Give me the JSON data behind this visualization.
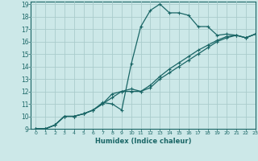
{
  "title": "",
  "xlabel": "Humidex (Indice chaleur)",
  "xlim": [
    -0.5,
    23
  ],
  "ylim": [
    9,
    19.2
  ],
  "xticks": [
    0,
    1,
    2,
    3,
    4,
    5,
    6,
    7,
    8,
    9,
    10,
    11,
    12,
    13,
    14,
    15,
    16,
    17,
    18,
    19,
    20,
    21,
    22,
    23
  ],
  "yticks": [
    9,
    10,
    11,
    12,
    13,
    14,
    15,
    16,
    17,
    18,
    19
  ],
  "background_color": "#cce8e8",
  "grid_color": "#aacccc",
  "line_color": "#1a6666",
  "line1_x": [
    0,
    1,
    2,
    3,
    4,
    5,
    6,
    7,
    8,
    9,
    10,
    11,
    12,
    13,
    14,
    15,
    16,
    17,
    18,
    19,
    20,
    21,
    22,
    23
  ],
  "line1_y": [
    9.0,
    9.0,
    9.3,
    10.0,
    10.0,
    10.2,
    10.5,
    11.1,
    11.0,
    10.5,
    14.2,
    17.2,
    18.5,
    19.0,
    18.3,
    18.3,
    18.1,
    17.2,
    17.2,
    16.5,
    16.6,
    16.5,
    16.3,
    16.6
  ],
  "line2_x": [
    0,
    1,
    2,
    3,
    4,
    5,
    6,
    7,
    8,
    9,
    10,
    11,
    12,
    13,
    14,
    15,
    16,
    17,
    18,
    19,
    20,
    21,
    22,
    23
  ],
  "line2_y": [
    9.0,
    9.0,
    9.3,
    10.0,
    10.0,
    10.2,
    10.5,
    11.0,
    11.8,
    12.0,
    12.2,
    12.0,
    12.3,
    13.0,
    13.5,
    14.0,
    14.5,
    15.0,
    15.5,
    16.0,
    16.3,
    16.5,
    16.3,
    16.6
  ],
  "line3_x": [
    0,
    1,
    2,
    3,
    4,
    5,
    6,
    7,
    8,
    9,
    10,
    11,
    12,
    13,
    14,
    15,
    16,
    17,
    18,
    19,
    20,
    21,
    22,
    23
  ],
  "line3_y": [
    9.0,
    9.0,
    9.3,
    10.0,
    10.0,
    10.2,
    10.5,
    11.0,
    11.5,
    12.0,
    12.0,
    12.0,
    12.5,
    13.2,
    13.8,
    14.3,
    14.8,
    15.3,
    15.7,
    16.1,
    16.4,
    16.5,
    16.3,
    16.6
  ]
}
